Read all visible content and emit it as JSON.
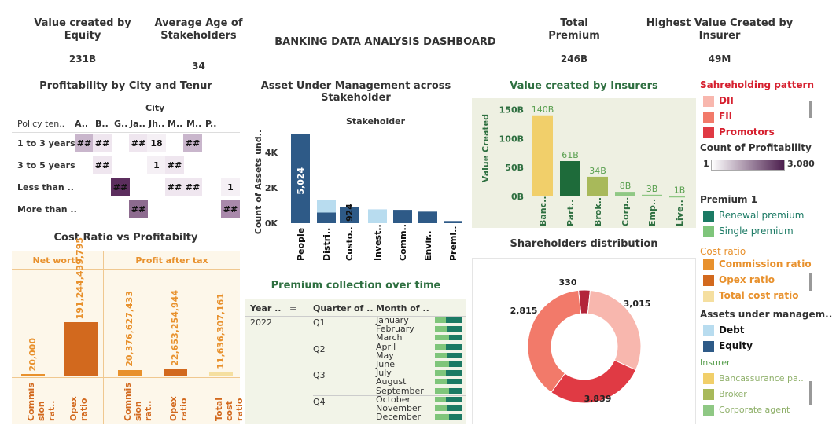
{
  "kpis": {
    "equity_title": "Value created by Equity",
    "equity_value": "231B",
    "age_title": "Average Age of Stakeholders",
    "age_value": "34",
    "dashboard_title": "BANKING DATA ANALYSIS DASHBOARD",
    "premium_title": "Total Premium",
    "premium_value": "246B",
    "insurer_title": "Highest Value Created by Insurer",
    "insurer_value": "49M"
  },
  "heatmap": {
    "title": "Profitability by City and Tenur",
    "city_label": "City",
    "row_header": "Policy ten..",
    "columns": [
      "A..",
      "B..",
      "G..",
      "Ja..",
      "Jh..",
      "M..",
      "M..",
      "P.."
    ],
    "rows": [
      "1 to 3 years",
      "3 to 5 years",
      "Less than ..",
      "More than .."
    ],
    "cells": [
      {
        "r": 0,
        "c": 0,
        "text": "##",
        "color": "#c9b6cc"
      },
      {
        "r": 0,
        "c": 1,
        "text": "##",
        "color": "#efe6ef"
      },
      {
        "r": 0,
        "c": 3,
        "text": "##",
        "color": "#efe6ef"
      },
      {
        "r": 0,
        "c": 4,
        "text": "18",
        "color": "#f5f0f5"
      },
      {
        "r": 0,
        "c": 6,
        "text": "##",
        "color": "#c9b6cc"
      },
      {
        "r": 1,
        "c": 1,
        "text": "##",
        "color": "#efe6ef"
      },
      {
        "r": 1,
        "c": 4,
        "text": "1",
        "color": "#f5f0f5"
      },
      {
        "r": 1,
        "c": 5,
        "text": "##",
        "color": "#efe6ef"
      },
      {
        "r": 2,
        "c": 2,
        "text": "##",
        "color": "#5c2e5e"
      },
      {
        "r": 2,
        "c": 5,
        "text": "##",
        "color": "#efe6ef"
      },
      {
        "r": 2,
        "c": 6,
        "text": "##",
        "color": "#efe6ef"
      },
      {
        "r": 2,
        "c": 7,
        "text": "1",
        "color": "#f5f0f5"
      },
      {
        "r": 3,
        "c": 3,
        "text": "##",
        "color": "#8d6b8f"
      },
      {
        "r": 3,
        "c": 7,
        "text": "##",
        "color": "#a989ab"
      }
    ]
  },
  "cost_ratio": {
    "title": "Cost Ratio vs Profitabilty",
    "net_worth_label": "Net worth",
    "profit_label": "Profit after tax",
    "bars": [
      {
        "group": 0,
        "label": "Commis sion rat..",
        "value_text": "20,000",
        "value": 20000,
        "color": "#e8912d"
      },
      {
        "group": 0,
        "label": "Opex ratio",
        "value_text": "191,244,439,795",
        "value": 191244439795,
        "color": "#d2691e"
      },
      {
        "group": 1,
        "label": "Commis sion rat..",
        "value_text": "20,376,627,433",
        "value": 20376627433,
        "color": "#e8912d"
      },
      {
        "group": 1,
        "label": "Opex ratio",
        "value_text": "22,653,254,944",
        "value": 22653254944,
        "color": "#d2691e"
      },
      {
        "group": 1,
        "label": "Total cost ratio",
        "value_text": "11,636,307,161",
        "value": 11636307161,
        "color": "#f5dfa0"
      }
    ]
  },
  "aum": {
    "title": "Asset Under Management across Stakeholder",
    "stakeholder_label": "Stakeholder",
    "y_label": "Count of Assets und..",
    "y_ticks": [
      "4K",
      "2K",
      "0K"
    ],
    "inner_labels": [
      "5,024",
      "924"
    ]
  },
  "insurers": {
    "title": "Value created by Insurers",
    "y_label": "Value Created",
    "y_ticks": [
      "150B",
      "100B",
      "50B",
      "0B"
    ]
  },
  "shareholders": {
    "title": "Shareholders distribution",
    "labels": [
      "330",
      "3,015",
      "2,815",
      "3,839"
    ]
  },
  "premium_time": {
    "title": "Premium collection over time",
    "headers": [
      "Year ..",
      "Quarter of ..",
      "Month of .."
    ],
    "year": "2022",
    "quarters": [
      "Q1",
      "Q2",
      "Q3",
      "Q4"
    ],
    "months": [
      "January",
      "February",
      "March",
      "April",
      "May",
      "June",
      "July",
      "August",
      "September",
      "October",
      "November",
      "December"
    ]
  },
  "legends": {
    "shareholding_title": "Sahreholding pattern",
    "shareholding": [
      {
        "label": "DII",
        "color": "#f8b7ae"
      },
      {
        "label": "FII",
        "color": "#f27a6a"
      },
      {
        "label": "Promotors",
        "color": "#e03a44"
      }
    ],
    "profit_count_title": "Count of Profitability",
    "profit_min": "1",
    "profit_max": "3,080",
    "premium_title": "Premium 1",
    "premium": [
      {
        "label": "Renewal premium",
        "color": "#1b7a64"
      },
      {
        "label": "Single premium",
        "color": "#7fc57b"
      }
    ],
    "cost_title": "Cost ratio",
    "cost": [
      {
        "label": "Commission ratio",
        "color": "#e8912d"
      },
      {
        "label": "Opex ratio",
        "color": "#d2691e"
      },
      {
        "label": "Total cost ratio",
        "color": "#f5dfa0"
      }
    ],
    "assets_title": "Assets under managem..",
    "assets": [
      {
        "label": "Debt",
        "color": "#b8dcef"
      },
      {
        "label": "Equity",
        "color": "#2e5a87"
      }
    ],
    "insurer_title": "Insurer",
    "insurer": [
      {
        "label": "Bancassurance pa..",
        "color": "#f1cf6a"
      },
      {
        "label": "Broker",
        "color": "#a8b95a"
      },
      {
        "label": "Corporate agent",
        "color": "#8fc884"
      }
    ]
  },
  "chart_data": [
    {
      "type": "bar",
      "title": "Asset Under Management across Stakeholder",
      "ylabel": "Count of Assets und..",
      "categories": [
        "People",
        "Distri..",
        "Custo..",
        "Invest..",
        "Comm..",
        "Envir..",
        "Premi.."
      ],
      "series": [
        {
          "name": "Equity",
          "values": [
            5024,
            600,
            924,
            0,
            750,
            650,
            120
          ]
        },
        {
          "name": "Debt",
          "values": [
            0,
            700,
            0,
            780,
            0,
            0,
            0
          ]
        }
      ],
      "ylim": [
        0,
        5500
      ]
    },
    {
      "type": "bar",
      "title": "Value created by Insurers",
      "ylabel": "Value Created",
      "categories": [
        "Banc..",
        "Part..",
        "Brok..",
        "Corp..",
        "Emp..",
        "Live.."
      ],
      "values": [
        140,
        61,
        34,
        8,
        3,
        1
      ],
      "value_labels": [
        "140B",
        "61B",
        "34B",
        "8B",
        "3B",
        "1B"
      ],
      "colors": [
        "#f1cf6a",
        "#1e6b3a",
        "#a8b95a",
        "#8fc884",
        "#8fc884",
        "#8fc884"
      ],
      "ylim": [
        0,
        160
      ]
    },
    {
      "type": "pie",
      "title": "Shareholders distribution",
      "categories": [
        "Promotors (top)",
        "DII",
        "Promotors",
        "FII"
      ],
      "values": [
        330,
        3015,
        2815,
        3839
      ],
      "colors": [
        "#b3243a",
        "#f8b7ae",
        "#e03a44",
        "#f27a6a"
      ]
    }
  ]
}
